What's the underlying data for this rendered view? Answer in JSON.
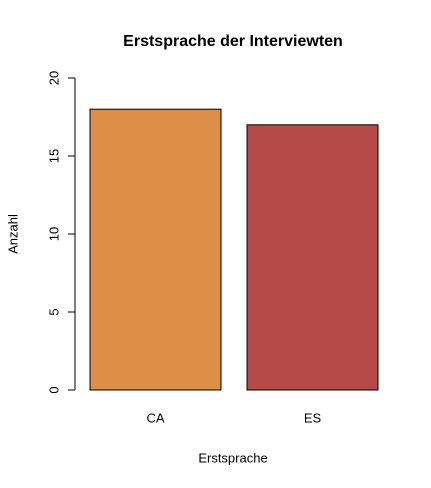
{
  "chart_data": {
    "type": "bar",
    "title": "Erstsprache der Interviewten",
    "x_label": "Erstsprache",
    "y_label": "Anzahl",
    "categories": [
      "CA",
      "ES"
    ],
    "values": [
      18,
      17
    ],
    "colors": [
      "#dd8f47",
      "#b54a48"
    ],
    "ylim": [
      0,
      20
    ],
    "yticks": [
      0,
      5,
      10,
      15,
      20
    ],
    "grid": false
  }
}
